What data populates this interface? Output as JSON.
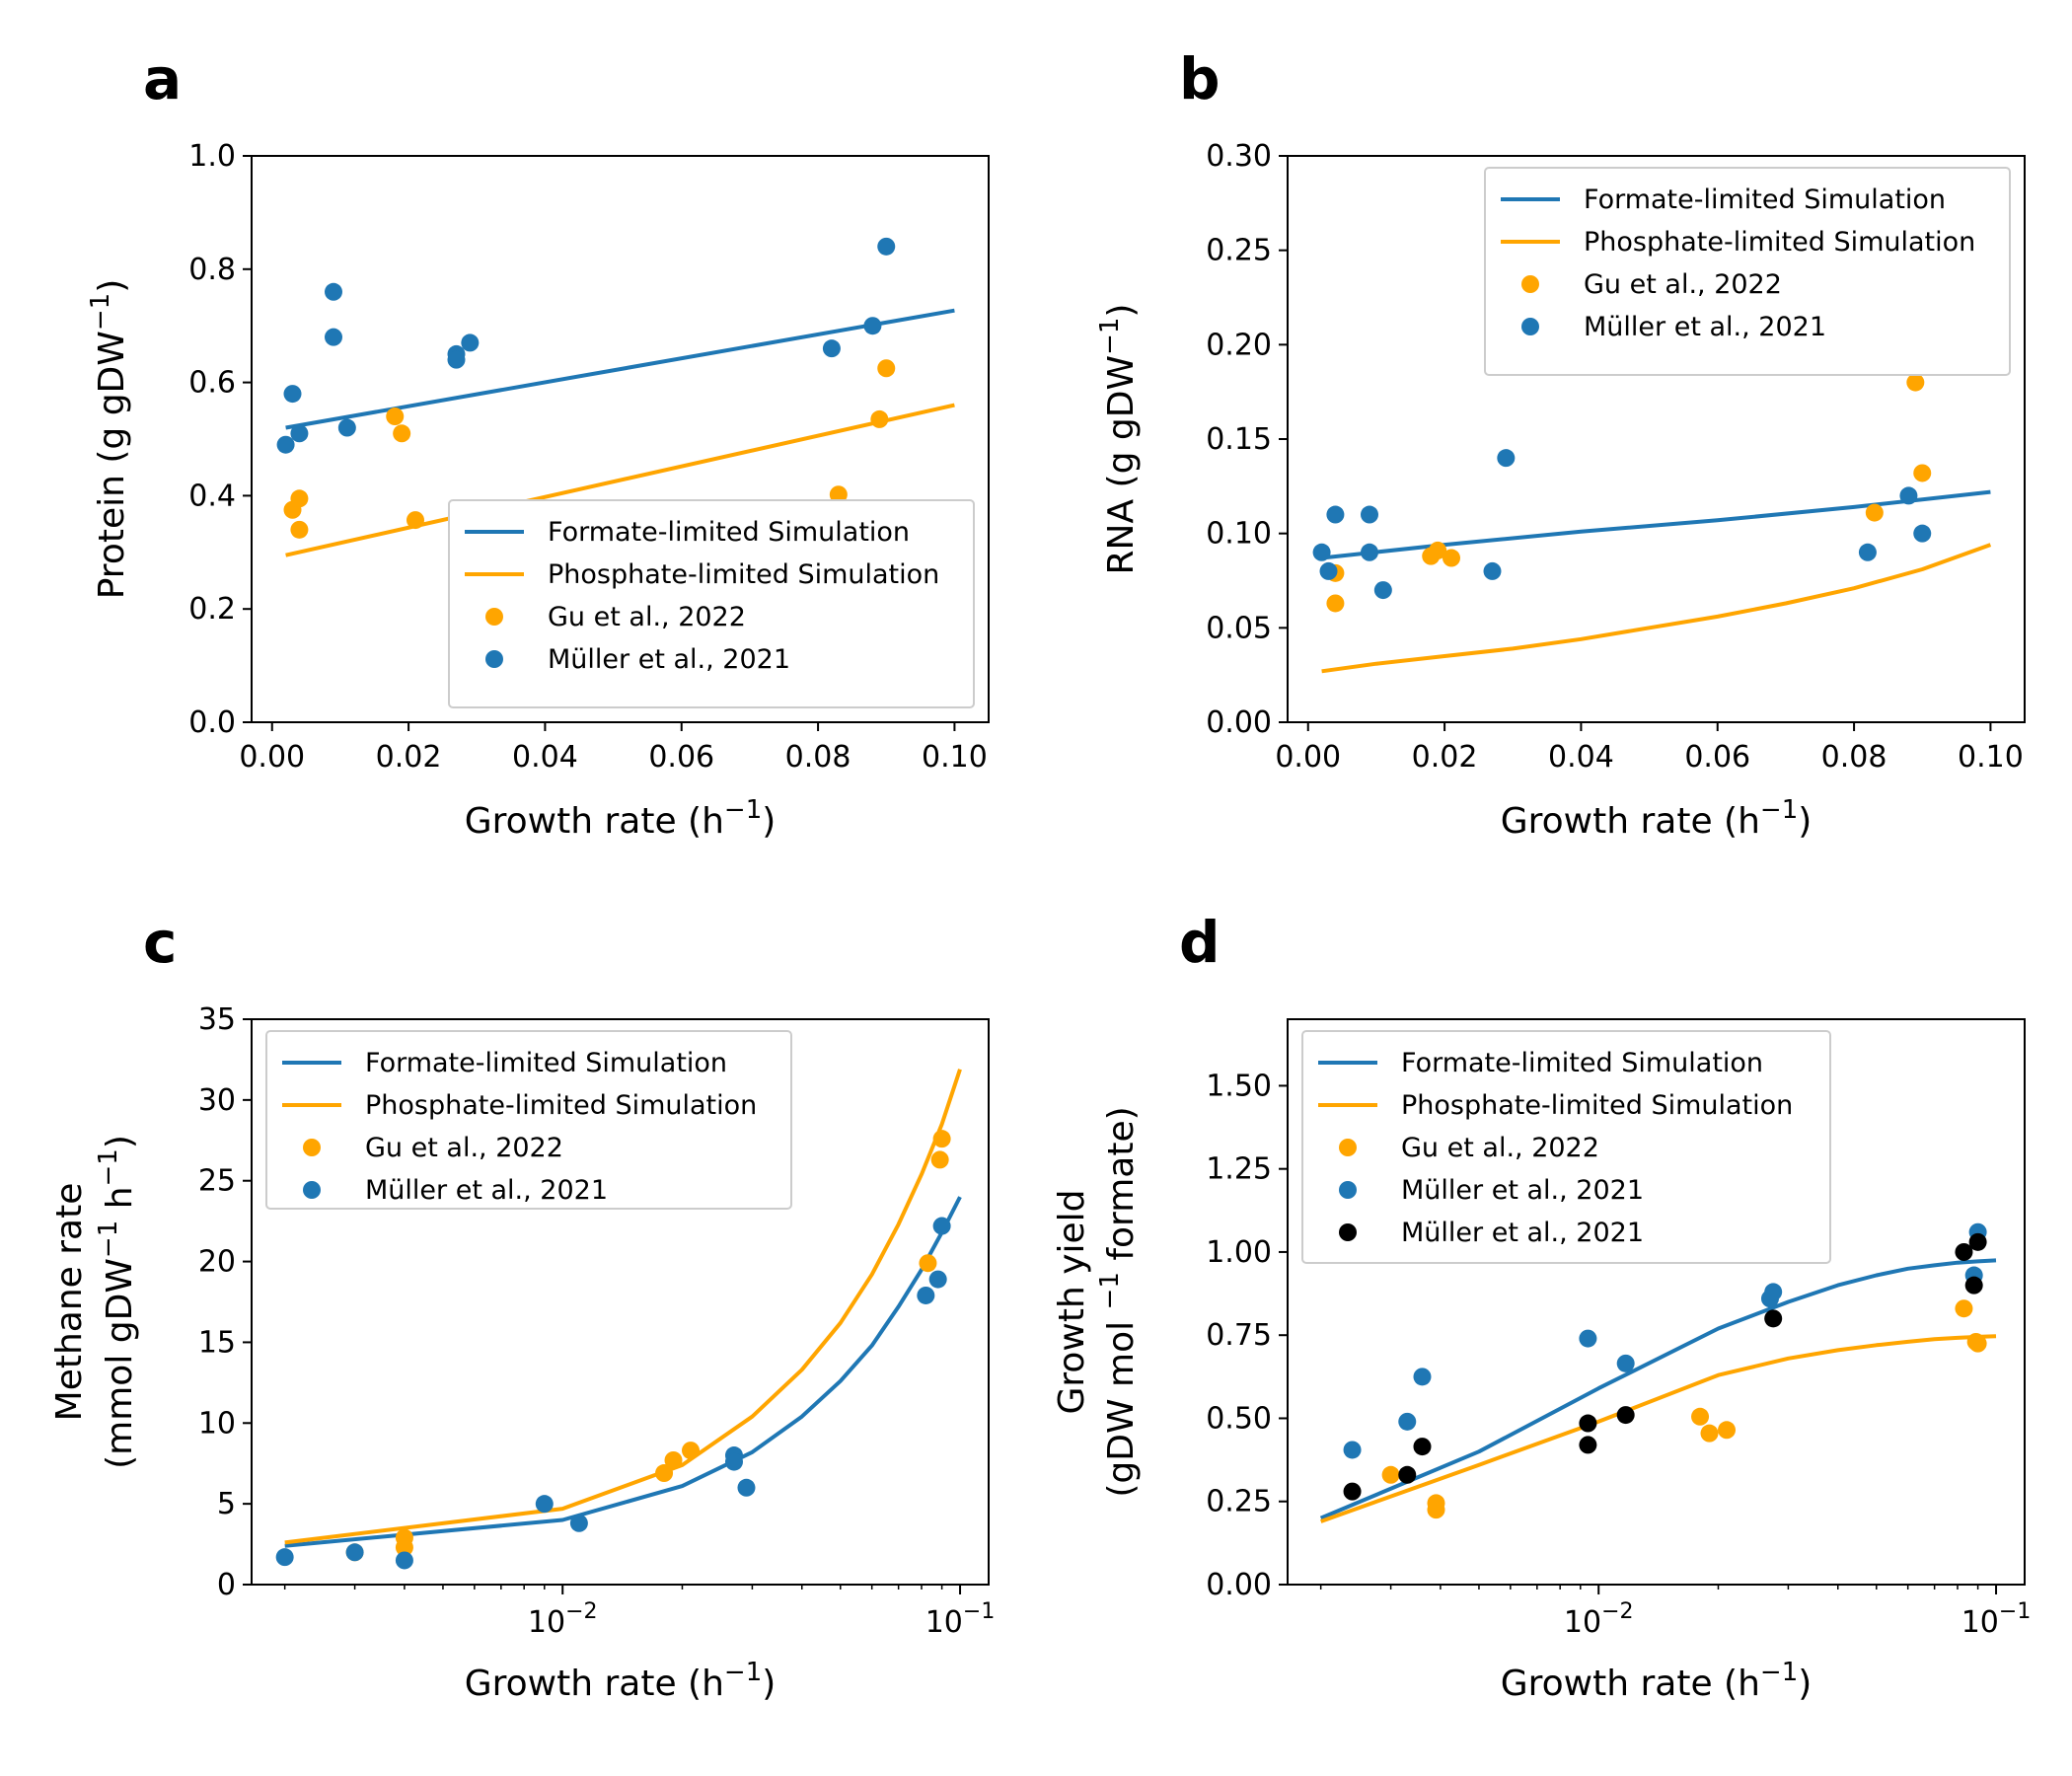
{
  "colors": {
    "formate": "#1f77b4",
    "phosphate": "#ffa500",
    "black": "#000000"
  },
  "chart_data": [
    {
      "panel": "a",
      "type": "line",
      "xlabel": "Growth rate (h",
      "xlabel_sup": "−1",
      "xlabel_end": ")",
      "ylabel": "Protein (g gDW",
      "ylabel_sup": "−1",
      "ylabel_end": ")",
      "xscale": "linear",
      "xlim": [
        -0.003,
        0.105
      ],
      "ylim": [
        0,
        1.0
      ],
      "xticks": [
        0.0,
        0.02,
        0.04,
        0.06,
        0.08,
        0.1
      ],
      "xtick_labels": [
        "0.00",
        "0.02",
        "0.04",
        "0.06",
        "0.08",
        "0.10"
      ],
      "yticks": [
        0.0,
        0.2,
        0.4,
        0.6,
        0.8,
        1.0
      ],
      "ytick_labels": [
        "0.0",
        "0.2",
        "0.4",
        "0.6",
        "0.8",
        "1.0"
      ],
      "legend_position": "lower-right",
      "legend": [
        {
          "label": "Formate-limited Simulation",
          "kind": "line",
          "color_key": "formate"
        },
        {
          "label": "Phosphate-limited Simulation",
          "kind": "line",
          "color_key": "phosphate"
        },
        {
          "label": "Gu et al., 2022",
          "kind": "dot",
          "color_key": "phosphate"
        },
        {
          "label": "Müller et al., 2021",
          "kind": "dot",
          "color_key": "formate"
        }
      ],
      "series": [
        {
          "kind": "line",
          "color_key": "formate",
          "x": [
            0.002,
            0.1
          ],
          "y": [
            0.52,
            0.727
          ]
        },
        {
          "kind": "line",
          "color_key": "phosphate",
          "x": [
            0.002,
            0.1
          ],
          "y": [
            0.295,
            0.56
          ]
        },
        {
          "kind": "scatter",
          "color_key": "phosphate",
          "x": [
            0.003,
            0.004,
            0.004,
            0.018,
            0.019,
            0.021,
            0.083,
            0.089,
            0.09
          ],
          "y": [
            0.375,
            0.395,
            0.34,
            0.54,
            0.51,
            0.357,
            0.402,
            0.535,
            0.625
          ]
        },
        {
          "kind": "scatter",
          "color_key": "formate",
          "x": [
            0.002,
            0.003,
            0.004,
            0.009,
            0.009,
            0.011,
            0.027,
            0.027,
            0.029,
            0.082,
            0.088,
            0.09
          ],
          "y": [
            0.49,
            0.58,
            0.51,
            0.76,
            0.68,
            0.52,
            0.65,
            0.64,
            0.67,
            0.66,
            0.7,
            0.84
          ]
        }
      ]
    },
    {
      "panel": "b",
      "type": "line",
      "xlabel": "Growth rate (h",
      "xlabel_sup": "−1",
      "xlabel_end": ")",
      "ylabel": "RNA (g gDW",
      "ylabel_sup": "−1",
      "ylabel_end": ")",
      "xscale": "linear",
      "xlim": [
        -0.003,
        0.105
      ],
      "ylim": [
        0,
        0.3
      ],
      "xticks": [
        0.0,
        0.02,
        0.04,
        0.06,
        0.08,
        0.1
      ],
      "xtick_labels": [
        "0.00",
        "0.02",
        "0.04",
        "0.06",
        "0.08",
        "0.10"
      ],
      "yticks": [
        0.0,
        0.05,
        0.1,
        0.15,
        0.2,
        0.25,
        0.3
      ],
      "ytick_labels": [
        "0.00",
        "0.05",
        "0.10",
        "0.15",
        "0.20",
        "0.25",
        "0.30"
      ],
      "legend_position": "upper-right",
      "legend": [
        {
          "label": "Formate-limited Simulation",
          "kind": "line",
          "color_key": "formate"
        },
        {
          "label": "Phosphate-limited Simulation",
          "kind": "line",
          "color_key": "phosphate"
        },
        {
          "label": "Gu et al., 2022",
          "kind": "dot",
          "color_key": "phosphate"
        },
        {
          "label": "Müller et al., 2021",
          "kind": "dot",
          "color_key": "formate"
        }
      ],
      "series": [
        {
          "kind": "line",
          "color_key": "formate",
          "x": [
            0.002,
            0.02,
            0.04,
            0.06,
            0.08,
            0.1
          ],
          "y": [
            0.087,
            0.094,
            0.101,
            0.107,
            0.114,
            0.122
          ]
        },
        {
          "kind": "line",
          "color_key": "phosphate",
          "x": [
            0.002,
            0.01,
            0.02,
            0.03,
            0.04,
            0.05,
            0.06,
            0.07,
            0.08,
            0.09,
            0.1
          ],
          "y": [
            0.027,
            0.031,
            0.035,
            0.039,
            0.044,
            0.05,
            0.056,
            0.063,
            0.071,
            0.081,
            0.094
          ]
        },
        {
          "kind": "scatter",
          "color_key": "phosphate",
          "x": [
            0.004,
            0.004,
            0.018,
            0.019,
            0.021,
            0.083,
            0.089,
            0.09
          ],
          "y": [
            0.079,
            0.063,
            0.088,
            0.091,
            0.087,
            0.111,
            0.18,
            0.132
          ]
        },
        {
          "kind": "scatter",
          "color_key": "formate",
          "x": [
            0.002,
            0.003,
            0.004,
            0.009,
            0.009,
            0.011,
            0.027,
            0.029,
            0.082,
            0.088,
            0.09
          ],
          "y": [
            0.09,
            0.08,
            0.11,
            0.11,
            0.09,
            0.07,
            0.08,
            0.14,
            0.09,
            0.12,
            0.1
          ]
        }
      ]
    },
    {
      "panel": "c",
      "type": "line",
      "xlabel": "Growth rate (h",
      "xlabel_sup": "−1",
      "xlabel_end": ")",
      "ylabel": "Methane rate",
      "ylabel2": "(mmol gDW",
      "ylabel2_sup": "−1",
      "ylabel2_mid": " h",
      "ylabel2_sup2": "−1",
      "ylabel2_end": ")",
      "xscale": "log",
      "xlim": [
        0.00165,
        0.118
      ],
      "ylim": [
        0,
        35
      ],
      "xticks": [
        0.01,
        0.1
      ],
      "xtick_base": "10",
      "xtick_exps": [
        "−2",
        "−1"
      ],
      "yticks": [
        0,
        5,
        10,
        15,
        20,
        25,
        30,
        35
      ],
      "ytick_labels": [
        "0",
        "5",
        "10",
        "15",
        "20",
        "25",
        "30",
        "35"
      ],
      "legend_position": "upper-left",
      "legend": [
        {
          "label": "Formate-limited Simulation",
          "kind": "line",
          "color_key": "formate"
        },
        {
          "label": "Phosphate-limited Simulation",
          "kind": "line",
          "color_key": "phosphate"
        },
        {
          "label": "Gu et al., 2022",
          "kind": "dot",
          "color_key": "phosphate"
        },
        {
          "label": "Müller et al., 2021",
          "kind": "dot",
          "color_key": "formate"
        }
      ],
      "series": [
        {
          "kind": "line",
          "color_key": "formate",
          "x": [
            0.002,
            0.01,
            0.02,
            0.03,
            0.04,
            0.05,
            0.06,
            0.07,
            0.08,
            0.09,
            0.1
          ],
          "y": [
            2.4,
            4.0,
            6.1,
            8.2,
            10.4,
            12.6,
            14.8,
            17.2,
            19.5,
            21.8,
            24.0
          ]
        },
        {
          "kind": "line",
          "color_key": "phosphate",
          "x": [
            0.002,
            0.01,
            0.02,
            0.03,
            0.04,
            0.05,
            0.06,
            0.07,
            0.08,
            0.09,
            0.1
          ],
          "y": [
            2.6,
            4.7,
            7.4,
            10.4,
            13.3,
            16.2,
            19.2,
            22.3,
            25.4,
            28.5,
            31.9
          ]
        },
        {
          "kind": "scatter",
          "color_key": "phosphate",
          "x": [
            0.003,
            0.004,
            0.004,
            0.018,
            0.019,
            0.021,
            0.083,
            0.089,
            0.09
          ],
          "y": [
            2.0,
            2.9,
            2.3,
            6.9,
            7.7,
            8.3,
            19.9,
            26.3,
            27.6
          ]
        },
        {
          "kind": "scatter",
          "color_key": "formate",
          "x": [
            0.002,
            0.003,
            0.004,
            0.009,
            0.011,
            0.027,
            0.027,
            0.029,
            0.082,
            0.088,
            0.09
          ],
          "y": [
            1.7,
            2.0,
            1.5,
            5.0,
            3.8,
            8.0,
            7.6,
            6.0,
            17.9,
            18.9,
            22.2
          ]
        }
      ]
    },
    {
      "panel": "d",
      "type": "line",
      "xlabel": "Growth rate (h",
      "xlabel_sup": "−1",
      "xlabel_end": ")",
      "ylabel": "Growth yield",
      "ylabel2": "(gDW mol ",
      "ylabel2_sup": "−1",
      "ylabel2_end": " formate)",
      "xscale": "log",
      "xlim": [
        0.00165,
        0.118
      ],
      "ylim": [
        0,
        1.7
      ],
      "xticks": [
        0.01,
        0.1
      ],
      "xtick_base": "10",
      "xtick_exps": [
        "−2",
        "−1"
      ],
      "yticks": [
        0.0,
        0.25,
        0.5,
        0.75,
        1.0,
        1.25,
        1.5
      ],
      "ytick_labels": [
        "0.00",
        "0.25",
        "0.50",
        "0.75",
        "1.00",
        "1.25",
        "1.50"
      ],
      "legend_position": "upper-left",
      "legend": [
        {
          "label": "Formate-limited Simulation",
          "kind": "line",
          "color_key": "formate"
        },
        {
          "label": "Phosphate-limited Simulation",
          "kind": "line",
          "color_key": "phosphate"
        },
        {
          "label": "Gu et al., 2022",
          "kind": "dot",
          "color_key": "phosphate"
        },
        {
          "label": "Müller et al., 2021",
          "kind": "dot",
          "color_key": "formate"
        },
        {
          "label": "Müller et al., 2021",
          "kind": "dot",
          "color_key": "black"
        }
      ],
      "series": [
        {
          "kind": "line",
          "color_key": "formate",
          "x": [
            0.002,
            0.005,
            0.01,
            0.02,
            0.03,
            0.04,
            0.05,
            0.06,
            0.07,
            0.08,
            0.09,
            0.1
          ],
          "y": [
            0.2,
            0.4,
            0.59,
            0.77,
            0.85,
            0.9,
            0.93,
            0.95,
            0.96,
            0.968,
            0.972,
            0.975
          ]
        },
        {
          "kind": "line",
          "color_key": "phosphate",
          "x": [
            0.002,
            0.005,
            0.01,
            0.02,
            0.03,
            0.04,
            0.05,
            0.06,
            0.07,
            0.08,
            0.09,
            0.1
          ],
          "y": [
            0.19,
            0.36,
            0.49,
            0.63,
            0.68,
            0.705,
            0.72,
            0.73,
            0.738,
            0.742,
            0.745,
            0.747
          ]
        },
        {
          "kind": "scatter",
          "color_key": "phosphate",
          "x": [
            0.003,
            0.0039,
            0.0039,
            0.018,
            0.019,
            0.021,
            0.083,
            0.089,
            0.09
          ],
          "y": [
            0.33,
            0.245,
            0.225,
            0.505,
            0.455,
            0.465,
            0.83,
            0.73,
            0.725
          ]
        },
        {
          "kind": "scatter",
          "color_key": "formate",
          "x": [
            0.0024,
            0.0033,
            0.0036,
            0.0094,
            0.0117,
            0.027,
            0.0275,
            0.088,
            0.09
          ],
          "y": [
            0.405,
            0.49,
            0.625,
            0.74,
            0.665,
            0.86,
            0.88,
            0.93,
            1.06
          ]
        },
        {
          "kind": "scatter",
          "color_key": "black",
          "x": [
            0.0024,
            0.0033,
            0.0036,
            0.0094,
            0.0094,
            0.0117,
            0.0275,
            0.083,
            0.088,
            0.09
          ],
          "y": [
            0.28,
            0.33,
            0.415,
            0.485,
            0.42,
            0.51,
            0.8,
            1.0,
            0.9,
            1.03
          ]
        }
      ]
    }
  ]
}
